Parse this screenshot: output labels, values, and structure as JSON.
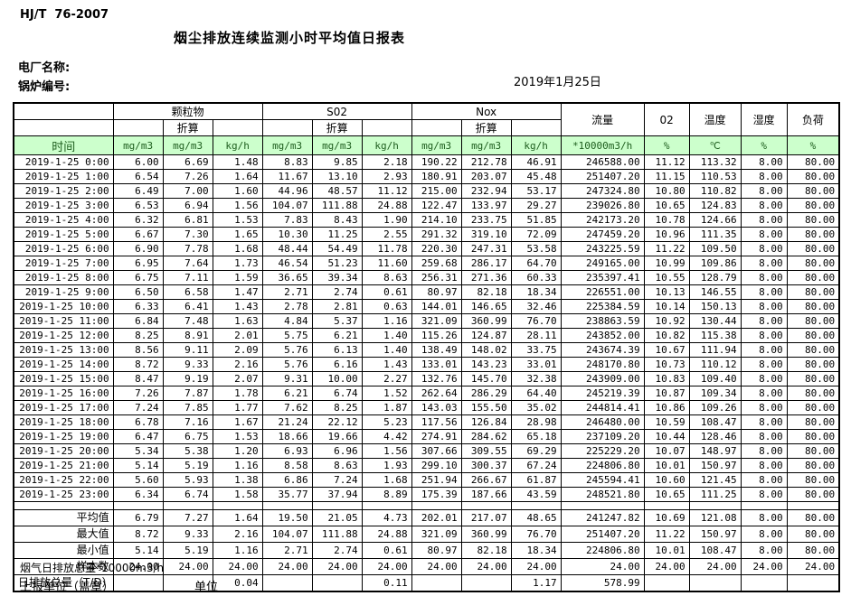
{
  "page": {
    "standard": "HJ/T  76-2007",
    "title": "烟尘排放连续监测小时平均值日报表",
    "plant_label": "电厂名称:",
    "boiler_label": "锅炉编号:",
    "date": "2019年1月25日"
  },
  "colors": {
    "header_bg": "#ccffcc",
    "header_text": "#1e5e1e",
    "border": "#000000"
  },
  "table": {
    "time_header": "时间",
    "subheader": "折算",
    "groups": {
      "pm": "颗粒物",
      "so2": "S02",
      "nox": "Nox",
      "flow": "流量",
      "o2": "02",
      "temp": "温度",
      "humidity": "湿度",
      "load": "负荷"
    },
    "units": [
      "mg/m3",
      "mg/m3",
      "kg/h",
      "mg/m3",
      "mg/m3",
      "kg/h",
      "mg/m3",
      "mg/m3",
      "kg/h",
      "*10000m3/h",
      "%",
      "℃",
      "%",
      "%"
    ],
    "rows": [
      {
        "time": "2019-1-25 0:00",
        "values": [
          "6.00",
          "6.69",
          "1.48",
          "8.83",
          "9.85",
          "2.18",
          "190.22",
          "212.78",
          "46.91",
          "246588.00",
          "11.12",
          "113.32",
          "8.00",
          "80.00"
        ]
      },
      {
        "time": "2019-1-25 1:00",
        "values": [
          "6.54",
          "7.26",
          "1.64",
          "11.67",
          "13.10",
          "2.93",
          "180.91",
          "203.07",
          "45.48",
          "251407.20",
          "11.15",
          "110.53",
          "8.00",
          "80.00"
        ]
      },
      {
        "time": "2019-1-25 2:00",
        "values": [
          "6.49",
          "7.00",
          "1.60",
          "44.96",
          "48.57",
          "11.12",
          "215.00",
          "232.94",
          "53.17",
          "247324.80",
          "10.80",
          "110.82",
          "8.00",
          "80.00"
        ]
      },
      {
        "time": "2019-1-25 3:00",
        "values": [
          "6.53",
          "6.94",
          "1.56",
          "104.07",
          "111.88",
          "24.88",
          "122.47",
          "133.97",
          "29.27",
          "239026.80",
          "10.65",
          "124.83",
          "8.00",
          "80.00"
        ]
      },
      {
        "time": "2019-1-25 4:00",
        "values": [
          "6.32",
          "6.81",
          "1.53",
          "7.83",
          "8.43",
          "1.90",
          "214.10",
          "233.75",
          "51.85",
          "242173.20",
          "10.78",
          "124.66",
          "8.00",
          "80.00"
        ]
      },
      {
        "time": "2019-1-25 5:00",
        "values": [
          "6.67",
          "7.30",
          "1.65",
          "10.30",
          "11.25",
          "2.55",
          "291.32",
          "319.10",
          "72.09",
          "247459.20",
          "10.96",
          "111.35",
          "8.00",
          "80.00"
        ]
      },
      {
        "time": "2019-1-25 6:00",
        "values": [
          "6.90",
          "7.78",
          "1.68",
          "48.44",
          "54.49",
          "11.78",
          "220.30",
          "247.31",
          "53.58",
          "243225.59",
          "11.22",
          "109.50",
          "8.00",
          "80.00"
        ]
      },
      {
        "time": "2019-1-25 7:00",
        "values": [
          "6.95",
          "7.64",
          "1.73",
          "46.54",
          "51.23",
          "11.60",
          "259.68",
          "286.17",
          "64.70",
          "249165.00",
          "10.99",
          "109.86",
          "8.00",
          "80.00"
        ]
      },
      {
        "time": "2019-1-25 8:00",
        "values": [
          "6.75",
          "7.11",
          "1.59",
          "36.65",
          "39.34",
          "8.63",
          "256.31",
          "271.36",
          "60.33",
          "235397.41",
          "10.55",
          "128.79",
          "8.00",
          "80.00"
        ]
      },
      {
        "time": "2019-1-25 9:00",
        "values": [
          "6.50",
          "6.58",
          "1.47",
          "2.71",
          "2.74",
          "0.61",
          "80.97",
          "82.18",
          "18.34",
          "226551.00",
          "10.13",
          "146.55",
          "8.00",
          "80.00"
        ]
      },
      {
        "time": "2019-1-25 10:00",
        "values": [
          "6.33",
          "6.41",
          "1.43",
          "2.78",
          "2.81",
          "0.63",
          "144.01",
          "146.65",
          "32.46",
          "225384.59",
          "10.14",
          "150.13",
          "8.00",
          "80.00"
        ]
      },
      {
        "time": "2019-1-25 11:00",
        "values": [
          "6.84",
          "7.48",
          "1.63",
          "4.84",
          "5.37",
          "1.16",
          "321.09",
          "360.99",
          "76.70",
          "238863.59",
          "10.92",
          "130.44",
          "8.00",
          "80.00"
        ]
      },
      {
        "time": "2019-1-25 12:00",
        "values": [
          "8.25",
          "8.91",
          "2.01",
          "5.75",
          "6.21",
          "1.40",
          "115.26",
          "124.87",
          "28.11",
          "243852.00",
          "10.82",
          "115.38",
          "8.00",
          "80.00"
        ]
      },
      {
        "time": "2019-1-25 13:00",
        "values": [
          "8.56",
          "9.11",
          "2.09",
          "5.76",
          "6.13",
          "1.40",
          "138.49",
          "148.02",
          "33.75",
          "243674.39",
          "10.67",
          "111.94",
          "8.00",
          "80.00"
        ]
      },
      {
        "time": "2019-1-25 14:00",
        "values": [
          "8.72",
          "9.33",
          "2.16",
          "5.76",
          "6.16",
          "1.43",
          "133.01",
          "143.23",
          "33.01",
          "248170.80",
          "10.73",
          "110.12",
          "8.00",
          "80.00"
        ]
      },
      {
        "time": "2019-1-25 15:00",
        "values": [
          "8.47",
          "9.19",
          "2.07",
          "9.31",
          "10.00",
          "2.27",
          "132.76",
          "145.70",
          "32.38",
          "243909.00",
          "10.83",
          "109.40",
          "8.00",
          "80.00"
        ]
      },
      {
        "time": "2019-1-25 16:00",
        "values": [
          "7.26",
          "7.87",
          "1.78",
          "6.21",
          "6.74",
          "1.52",
          "262.64",
          "286.29",
          "64.40",
          "245219.39",
          "10.87",
          "109.34",
          "8.00",
          "80.00"
        ]
      },
      {
        "time": "2019-1-25 17:00",
        "values": [
          "7.24",
          "7.85",
          "1.77",
          "7.62",
          "8.25",
          "1.87",
          "143.03",
          "155.50",
          "35.02",
          "244814.41",
          "10.86",
          "109.26",
          "8.00",
          "80.00"
        ]
      },
      {
        "time": "2019-1-25 18:00",
        "values": [
          "6.78",
          "7.16",
          "1.67",
          "21.24",
          "22.12",
          "5.23",
          "117.56",
          "126.84",
          "28.98",
          "246480.00",
          "10.59",
          "108.47",
          "8.00",
          "80.00"
        ]
      },
      {
        "time": "2019-1-25 19:00",
        "values": [
          "6.47",
          "6.75",
          "1.53",
          "18.66",
          "19.66",
          "4.42",
          "274.91",
          "284.62",
          "65.18",
          "237109.20",
          "10.44",
          "128.46",
          "8.00",
          "80.00"
        ]
      },
      {
        "time": "2019-1-25 20:00",
        "values": [
          "5.34",
          "5.38",
          "1.20",
          "6.93",
          "6.96",
          "1.56",
          "307.66",
          "309.55",
          "69.29",
          "225229.20",
          "10.07",
          "148.97",
          "8.00",
          "80.00"
        ]
      },
      {
        "time": "2019-1-25 21:00",
        "values": [
          "5.14",
          "5.19",
          "1.16",
          "8.58",
          "8.63",
          "1.93",
          "299.10",
          "300.37",
          "67.24",
          "224806.80",
          "10.01",
          "150.97",
          "8.00",
          "80.00"
        ]
      },
      {
        "time": "2019-1-25 22:00",
        "values": [
          "5.60",
          "5.93",
          "1.38",
          "6.86",
          "7.24",
          "1.68",
          "251.94",
          "266.67",
          "61.87",
          "245594.41",
          "10.60",
          "121.45",
          "8.00",
          "80.00"
        ]
      },
      {
        "time": "2019-1-25 23:00",
        "values": [
          "6.34",
          "6.74",
          "1.58",
          "35.77",
          "37.94",
          "8.89",
          "175.39",
          "187.66",
          "43.59",
          "248521.80",
          "10.65",
          "111.25",
          "8.00",
          "80.00"
        ]
      }
    ],
    "summary": [
      {
        "label": "平均值",
        "values": [
          "6.79",
          "7.27",
          "1.64",
          "19.50",
          "21.05",
          "4.73",
          "202.01",
          "217.07",
          "48.65",
          "241247.82",
          "10.69",
          "121.08",
          "8.00",
          "80.00"
        ]
      },
      {
        "label": "最大值",
        "values": [
          "8.72",
          "9.33",
          "2.16",
          "104.07",
          "111.88",
          "24.88",
          "321.09",
          "360.99",
          "76.70",
          "251407.20",
          "11.22",
          "150.97",
          "8.00",
          "80.00"
        ]
      },
      {
        "label": "最小值",
        "values": [
          "5.14",
          "5.19",
          "1.16",
          "2.71",
          "2.74",
          "0.61",
          "80.97",
          "82.18",
          "18.34",
          "224806.80",
          "10.01",
          "108.47",
          "8.00",
          "80.00"
        ]
      },
      {
        "label": "样本数",
        "values": [
          "24.00",
          "24.00",
          "24.00",
          "24.00",
          "24.00",
          "24.00",
          "24.00",
          "24.00",
          "24.00",
          "24.00",
          "24.00",
          "24.00",
          "24.00",
          "24.00"
        ]
      },
      {
        "label": "日排放总量（T/D）",
        "values": [
          "",
          "",
          "0.04",
          "",
          "",
          "0.11",
          "",
          "",
          "1.17",
          "578.99",
          "",
          "",
          "",
          ""
        ]
      }
    ]
  },
  "footer": {
    "flue_total_label": "烟气日排放总量*10000m3/h",
    "report_unit_label": "上报单位（盖章）",
    "unit_label": "单位"
  }
}
